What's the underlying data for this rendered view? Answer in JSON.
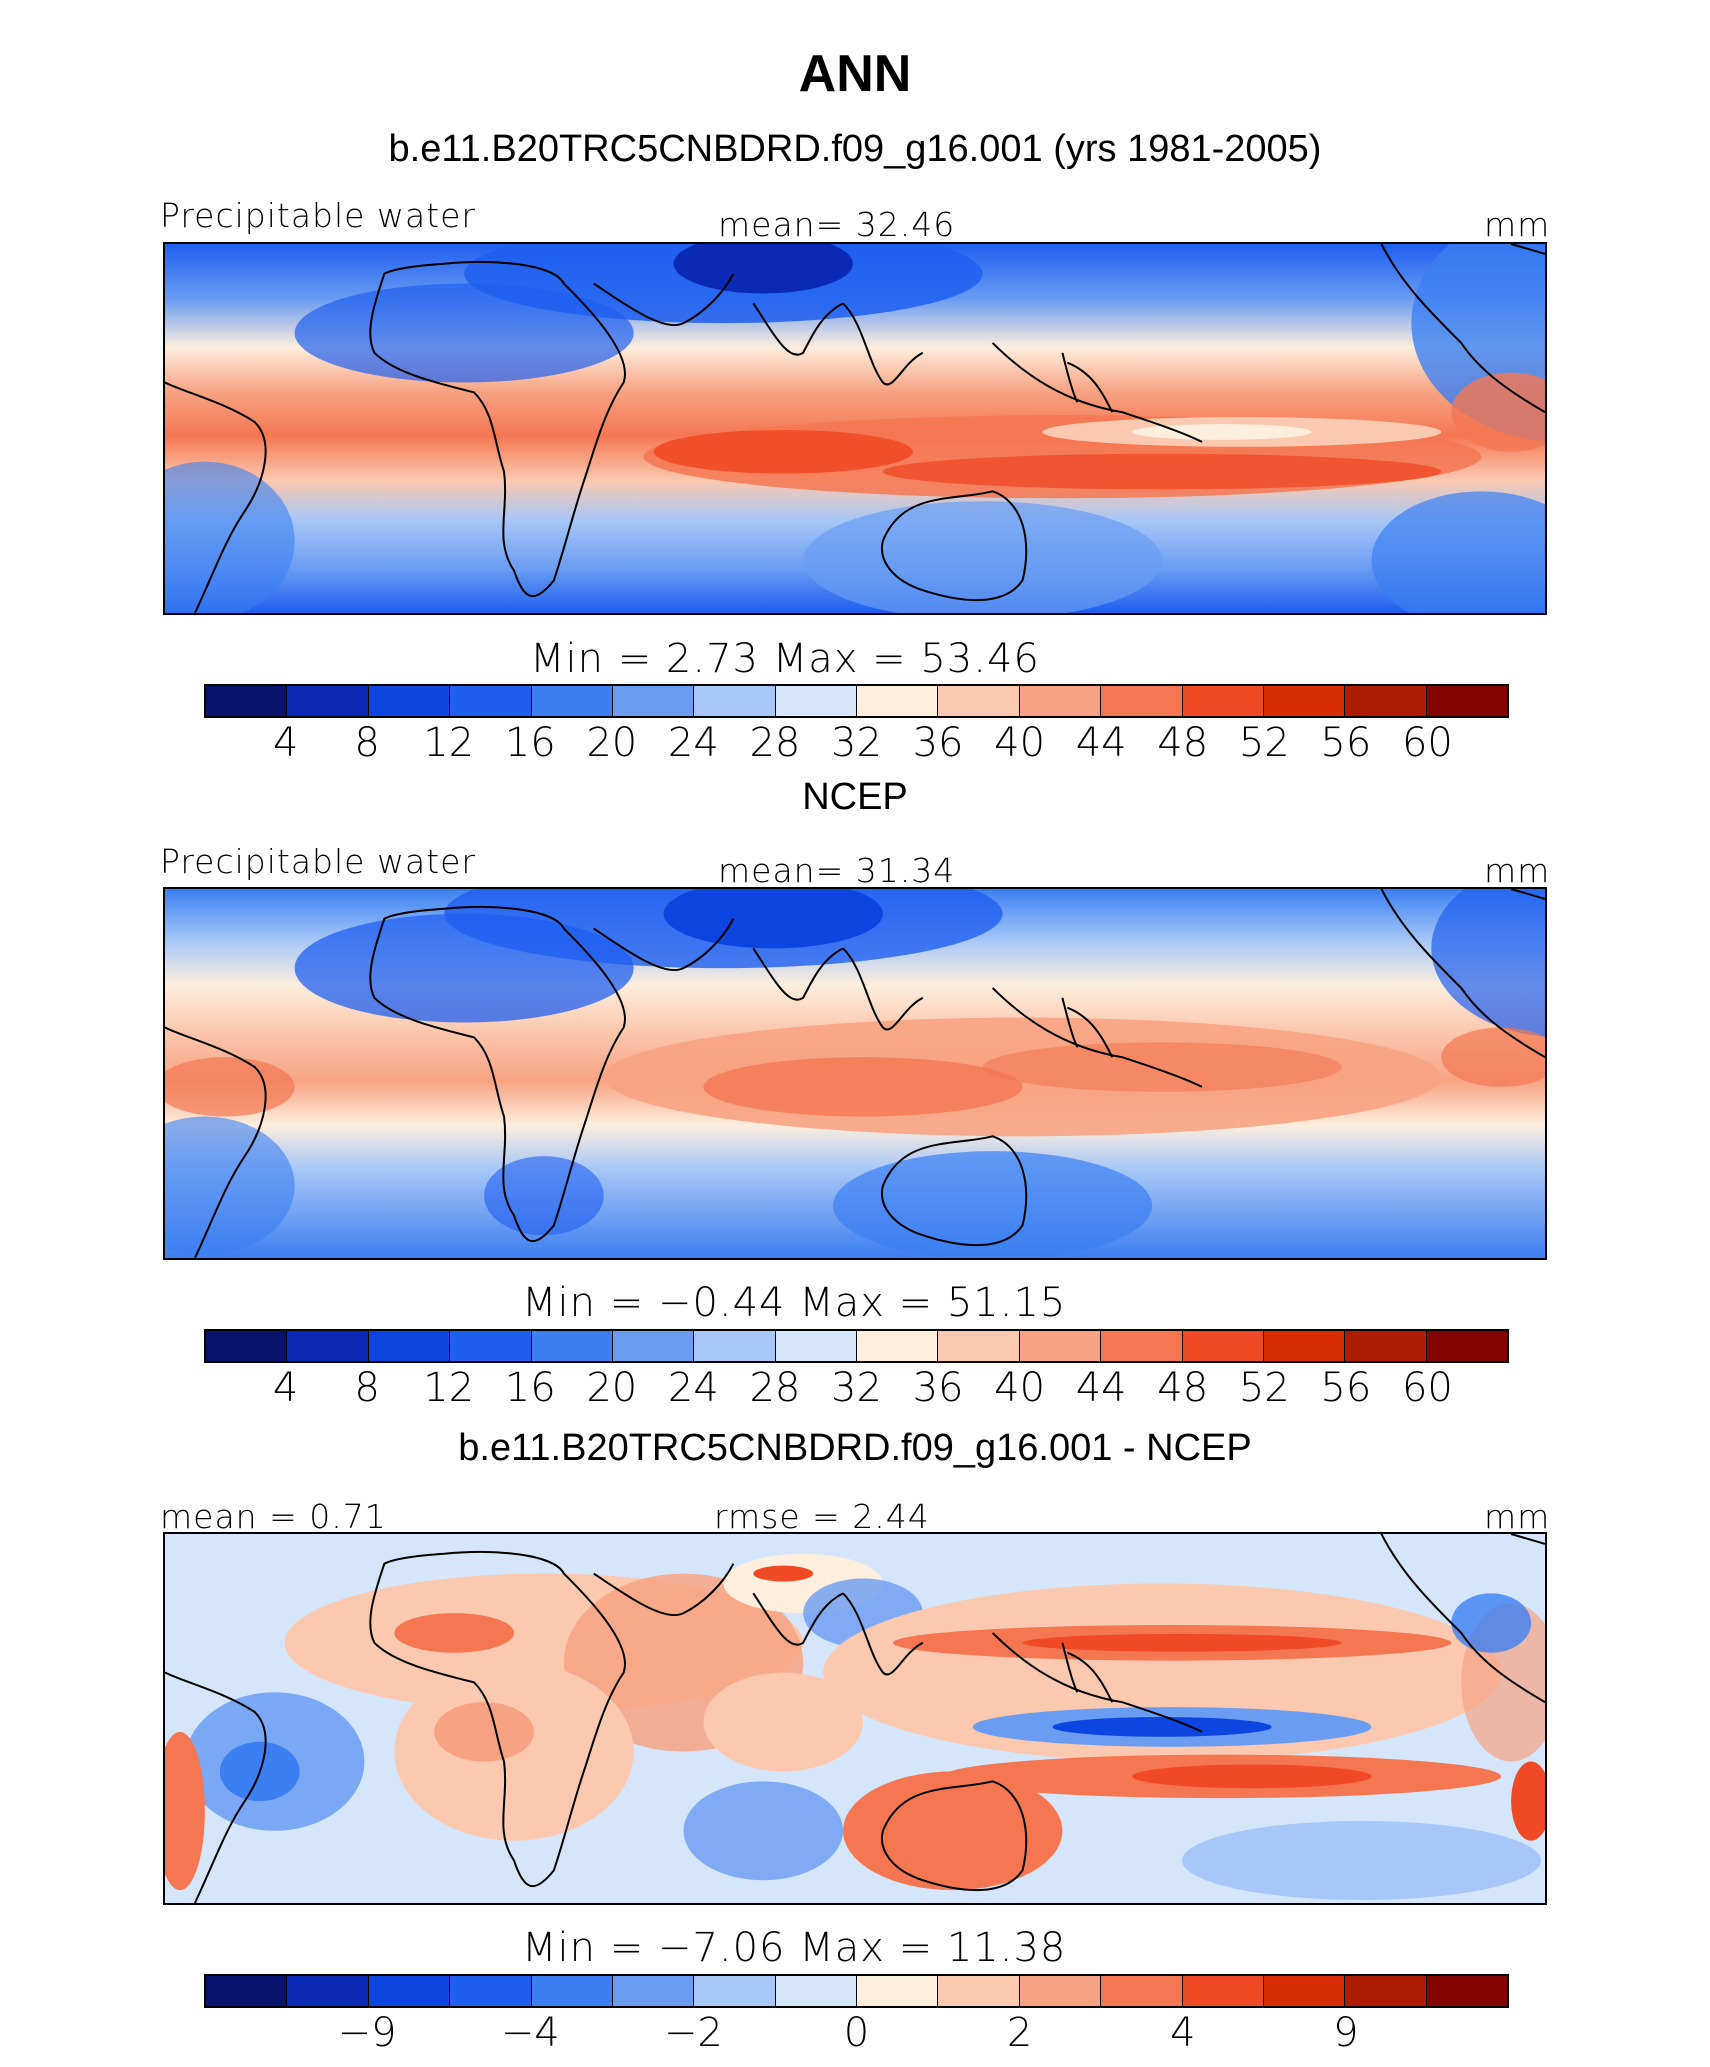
{
  "figure": {
    "title": "ANN",
    "colors": {
      "scale": [
        "#08136e",
        "#0a2ab6",
        "#0d45e0",
        "#1f5ff0",
        "#3b7ff2",
        "#6a9cf2",
        "#a6c7f7",
        "#d6e6fa",
        "#fdeede",
        "#fbc9b0",
        "#f7a383",
        "#f47752",
        "#ef4a25",
        "#d92d06",
        "#ae1c06",
        "#850601"
      ],
      "land_outline": "#000000"
    }
  },
  "panels": [
    {
      "id": "model",
      "heading": "b.e11.B20TRC5CNBDRD.f09_g16.001 (yrs 1981-2005)",
      "left_label": "Precipitable water",
      "center_label": "mean=  32.46",
      "units": "mm",
      "stats": "Min  =    2.73  Max  =   53.46",
      "colorbar_ticks": [
        "4",
        "8",
        "12",
        "16",
        "20",
        "24",
        "28",
        "32",
        "36",
        "40",
        "44",
        "48",
        "52",
        "56",
        "60"
      ]
    },
    {
      "id": "obs",
      "heading": "NCEP",
      "left_label": "Precipitable water",
      "center_label": "mean=  31.34",
      "units": "mm",
      "stats": "Min  =   −0.44  Max  =   51.15",
      "colorbar_ticks": [
        "4",
        "8",
        "12",
        "16",
        "20",
        "24",
        "28",
        "32",
        "36",
        "40",
        "44",
        "48",
        "52",
        "56",
        "60"
      ]
    },
    {
      "id": "diff",
      "heading": "b.e11.B20TRC5CNBDRD.f09_g16.001 - NCEP",
      "left_label": "mean  =    0.71",
      "center_label": "rmse  =    2.44",
      "units": "mm",
      "stats": "Min  =   −7.06  Max  =   11.38",
      "colorbar_ticks": [
        "−9",
        "−4",
        "−2",
        "0",
        "2",
        "4",
        "9"
      ]
    }
  ]
}
